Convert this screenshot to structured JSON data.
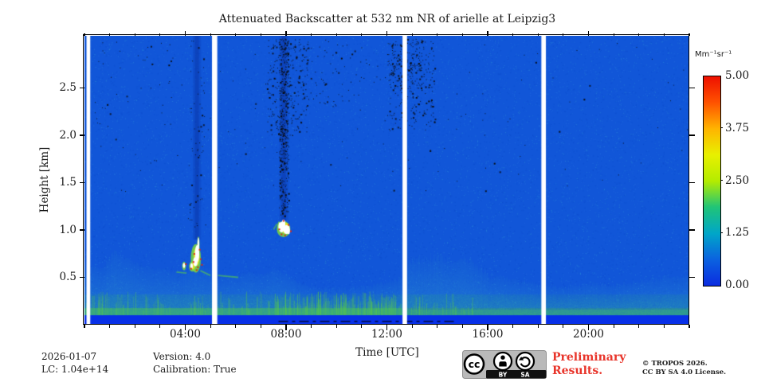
{
  "title": "Attenuated Backscatter at 532 nm NR of arielle at Leipzig3",
  "axes": {
    "xlabel": "Time [UTC]",
    "ylabel": "Height [km]",
    "x_ticks": [
      {
        "hour": 4,
        "label": "04:00"
      },
      {
        "hour": 8,
        "label": "08:00"
      },
      {
        "hour": 12,
        "label": "12:00"
      },
      {
        "hour": 16,
        "label": "16:00"
      },
      {
        "hour": 20,
        "label": "20:00"
      }
    ],
    "y_ticks": [
      {
        "km": 0.5,
        "label": "0.5"
      },
      {
        "km": 1.0,
        "label": "1.0"
      },
      {
        "km": 1.5,
        "label": "1.5"
      },
      {
        "km": 2.0,
        "label": "2.0"
      },
      {
        "km": 2.5,
        "label": "2.5"
      }
    ]
  },
  "colorbar": {
    "title": "Mm⁻¹sr⁻¹",
    "ticks": [
      {
        "value": 5.0,
        "label": "5.00"
      },
      {
        "value": 3.75,
        "label": "3.75"
      },
      {
        "value": 2.5,
        "label": "2.50"
      },
      {
        "value": 1.25,
        "label": "1.25"
      },
      {
        "value": 0.0,
        "label": "0.00"
      }
    ],
    "range": [
      0,
      5
    ],
    "gradient": [
      [
        0.0,
        "#0b2ce0"
      ],
      [
        0.125,
        "#0b62e0"
      ],
      [
        0.25,
        "#00a6c8"
      ],
      [
        0.375,
        "#20c478"
      ],
      [
        0.5,
        "#b4ec00"
      ],
      [
        0.625,
        "#e8f000"
      ],
      [
        0.75,
        "#ffb400"
      ],
      [
        0.875,
        "#ff5200"
      ],
      [
        1.0,
        "#ee1000"
      ]
    ]
  },
  "footer": {
    "date": "2026-01-07",
    "lc": "LC: 1.04e+14",
    "version": "Version: 4.0",
    "calibration": "Calibration: True"
  },
  "license_badge": {
    "cc": "cc",
    "by": "BY",
    "sa": "SA"
  },
  "preliminary": {
    "lines": [
      "Preliminary",
      "Results."
    ],
    "color": "#e8342a"
  },
  "copyright": {
    "lines": [
      "© TROPOS 2026.",
      "CC BY SA 4.0 License."
    ]
  },
  "chart_data": {
    "type": "heatmap",
    "title": "Attenuated Backscatter at 532 nm NR of arielle at Leipzig3",
    "xlabel": "Time [UTC]",
    "ylabel": "Height [km]",
    "x_range_hours": [
      0,
      24
    ],
    "y_range_km": [
      0,
      3.05
    ],
    "value_range": [
      0,
      5
    ],
    "value_units": "Mm⁻¹sr⁻¹",
    "x_major_tick_hours": [
      4,
      8,
      12,
      16,
      20
    ],
    "x_minor_tick_step_hours": 1,
    "y_major_tick_km": [
      0.5,
      1.0,
      1.5,
      2.0,
      2.5
    ],
    "colors": {
      "background": "#1156d8",
      "noise_light": "#2f7de8",
      "noise_bright": "#36a0d8",
      "noise_dark": "#0b44c4",
      "layer_low": "#3fbc6e",
      "layer_mid": "#2fa8a8",
      "layer_high": "#2b8fd0",
      "streak_green": "#55c453",
      "surface_band": "#0830e8",
      "stripe": "#0a34a8",
      "cloud_fringe": "#7fd83c",
      "cloud_yellow": "#e6e41e",
      "cloud_white": "#ffffff",
      "cloud_speck": "#e02810",
      "dot": "#0a0a0a",
      "gap": "#ffffff"
    },
    "surface_band_km": 0.1,
    "pbl_profile_km": [
      [
        0,
        0.65
      ],
      [
        0.7,
        0.6
      ],
      [
        1.2,
        0.78
      ],
      [
        1.8,
        0.68
      ],
      [
        2.5,
        0.6
      ],
      [
        3.2,
        0.58
      ],
      [
        3.8,
        0.55
      ],
      [
        4.2,
        0.6
      ],
      [
        4.6,
        0.62
      ],
      [
        5.0,
        0.58
      ],
      [
        5.3,
        0.5
      ],
      [
        6.0,
        0.52
      ],
      [
        6.5,
        0.56
      ],
      [
        7.0,
        0.52
      ],
      [
        7.5,
        0.58
      ],
      [
        8.0,
        0.55
      ],
      [
        8.5,
        0.45
      ],
      [
        9.0,
        0.4
      ],
      [
        10,
        0.38
      ],
      [
        11,
        0.4
      ],
      [
        12,
        0.45
      ],
      [
        12.6,
        0.5
      ],
      [
        13,
        0.68
      ],
      [
        13.5,
        0.66
      ],
      [
        14,
        0.7
      ],
      [
        14.5,
        0.65
      ],
      [
        15,
        0.68
      ],
      [
        15.5,
        0.6
      ],
      [
        16,
        0.52
      ],
      [
        17,
        0.48
      ],
      [
        18,
        0.42
      ],
      [
        19,
        0.4
      ],
      [
        20,
        0.44
      ],
      [
        21,
        0.42
      ],
      [
        22,
        0.46
      ],
      [
        23,
        0.5
      ],
      [
        24,
        0.52
      ]
    ],
    "data_gaps_hours": [
      [
        0.08,
        0.23
      ],
      [
        5.06,
        5.27
      ],
      [
        12.62,
        12.8
      ],
      [
        18.13,
        18.31
      ]
    ],
    "laser_shadow_stripes": [
      {
        "t0": 4.3,
        "t1": 4.62,
        "bottom_km": 0.9
      },
      {
        "t0": 7.74,
        "t1": 8.08,
        "bottom_km": 1.1
      }
    ],
    "noise_clusters": [
      {
        "t0": 7.72,
        "t1": 8.1,
        "km0": 1.15,
        "km1": 3.02,
        "n": 420
      },
      {
        "t0": 7.25,
        "t1": 8.85,
        "km0": 2.0,
        "km1": 3.02,
        "n": 260
      },
      {
        "t0": 8.8,
        "t1": 12.3,
        "km0": 2.3,
        "km1": 3.02,
        "n": 150,
        "fade": true
      },
      {
        "t0": 12.0,
        "t1": 13.9,
        "km0": 2.05,
        "km1": 3.02,
        "n": 230
      },
      {
        "t0": 12.2,
        "t1": 13.4,
        "km0": 2.5,
        "km1": 3.02,
        "n": 130
      },
      {
        "t0": 0,
        "t1": 24,
        "km0": 1.4,
        "km1": 3.0,
        "n": 140
      },
      {
        "t0": 0.3,
        "t1": 3.6,
        "km0": 2.1,
        "km1": 3.0,
        "n": 30
      },
      {
        "t0": 4.1,
        "t1": 4.8,
        "km0": 1.0,
        "km1": 3.0,
        "n": 60
      }
    ],
    "clouds": [
      {
        "time_h": 4.45,
        "base_km": 0.55,
        "top_km": 0.92,
        "fringe": [
          [
            4.42,
            0.7,
            0.2,
            0.15
          ],
          [
            4.28,
            0.615,
            0.13,
            0.055
          ],
          [
            3.95,
            0.62,
            0.075,
            0.045
          ],
          [
            4.52,
            0.84,
            0.05,
            0.09
          ]
        ],
        "yellow": [
          [
            4.45,
            0.72,
            0.12,
            0.1
          ],
          [
            4.3,
            0.62,
            0.08,
            0.035
          ]
        ],
        "white": [
          [
            4.47,
            0.75,
            0.085,
            0.09
          ],
          [
            4.4,
            0.665,
            0.09,
            0.05
          ],
          [
            4.52,
            0.85,
            0.035,
            0.07
          ],
          [
            3.95,
            0.625,
            0.045,
            0.026
          ],
          [
            4.25,
            0.62,
            0.05,
            0.03
          ]
        ],
        "specks": [
          [
            4.33,
            0.755
          ],
          [
            4.54,
            0.8
          ],
          [
            4.58,
            0.7
          ],
          [
            4.47,
            0.615
          ],
          [
            4.295,
            0.67
          ],
          [
            4.2,
            0.6
          ],
          [
            3.99,
            0.648
          ],
          [
            4.42,
            0.585
          ],
          [
            4.63,
            0.64
          ]
        ],
        "streaks": [
          [
            3.65,
            0.555,
            4.05,
            0.545
          ],
          [
            4.6,
            0.57,
            5.0,
            0.52
          ],
          [
            5.3,
            0.52,
            6.1,
            0.5
          ]
        ]
      },
      {
        "time_h": 7.9,
        "base_km": 0.95,
        "top_km": 1.12,
        "fringe": [
          [
            7.9,
            1.01,
            0.27,
            0.085
          ],
          [
            7.72,
            1.04,
            0.06,
            0.05
          ]
        ],
        "yellow": [
          [
            7.97,
            1.02,
            0.17,
            0.06
          ]
        ],
        "white": [
          [
            7.82,
            1.03,
            0.12,
            0.055
          ],
          [
            8.02,
            1.005,
            0.13,
            0.048
          ],
          [
            7.9,
            1.065,
            0.07,
            0.045
          ],
          [
            7.74,
            1.045,
            0.035,
            0.035
          ],
          [
            8.1,
            0.985,
            0.05,
            0.03
          ]
        ],
        "specks": [
          [
            7.7,
            1.015
          ],
          [
            7.79,
            0.962
          ],
          [
            8.07,
            1.062
          ],
          [
            8.16,
            0.995
          ],
          [
            7.93,
            0.952
          ],
          [
            7.87,
            1.105
          ]
        ],
        "streaks": [
          [
            7.5,
            1.005,
            7.64,
            1.065
          ]
        ]
      }
    ],
    "detection_line": {
      "from_h": 7.7,
      "to_h": 14.7,
      "km": 0.035
    }
  }
}
